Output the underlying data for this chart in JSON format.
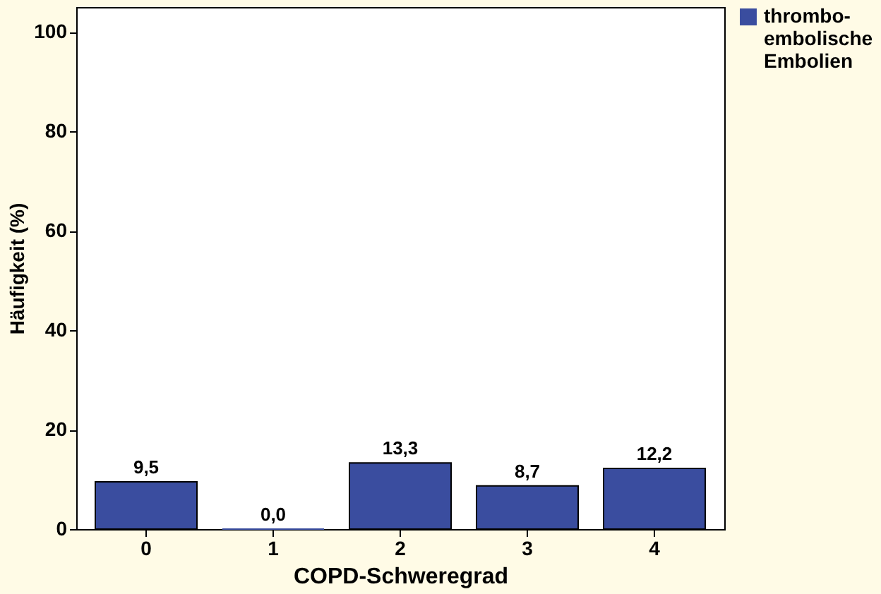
{
  "chart_data": {
    "type": "bar",
    "xlabel": "COPD-Schweregrad",
    "ylabel": "Häufigkeit (%)",
    "categories": [
      "0",
      "1",
      "2",
      "3",
      "4"
    ],
    "series": [
      {
        "name": "thrombo-\nembolische\nEmbolien",
        "color": "#3a4d9f",
        "values": [
          9.5,
          0.0,
          13.3,
          8.7,
          12.2
        ]
      }
    ],
    "value_labels": [
      "9,5",
      "0,0",
      "13,3",
      "8,7",
      "12,2"
    ],
    "ylim": [
      0,
      105
    ],
    "yticks": [
      0,
      20,
      40,
      60,
      80,
      100
    ],
    "grid": false,
    "legend": "right"
  }
}
